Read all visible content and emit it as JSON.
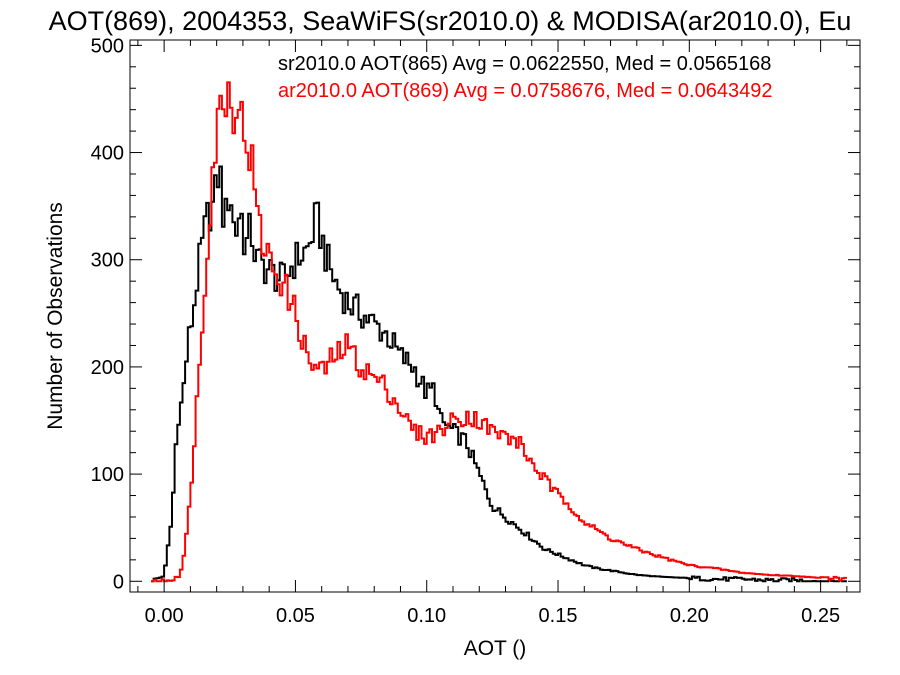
{
  "chart_data": {
    "type": "line",
    "title": "AOT(869), 2004353, SeaWiFS(sr2010.0) & MODISA(ar2010.0), Eu",
    "xlabel": "AOT ()",
    "ylabel": "Number of Observations",
    "xlim": [
      -0.013,
      0.265
    ],
    "ylim": [
      -10,
      505
    ],
    "xticks": [
      0.0,
      0.05,
      0.1,
      0.15,
      0.2,
      0.25
    ],
    "xtick_labels": [
      "0.00",
      "0.05",
      "0.10",
      "0.15",
      "0.20",
      "0.25"
    ],
    "yticks": [
      0,
      100,
      200,
      300,
      400,
      500
    ],
    "ytick_labels": [
      "0",
      "100",
      "200",
      "300",
      "400",
      "500"
    ],
    "grid": false,
    "legend_position": "top-right",
    "series": [
      {
        "name": "sr2010.0 AOT(865) Avg = 0.0622550, Med = 0.0565168",
        "color": "#000000",
        "style": "step",
        "x": [
          -0.005,
          0.0,
          0.003,
          0.005,
          0.007,
          0.009,
          0.011,
          0.013,
          0.015,
          0.017,
          0.019,
          0.021,
          0.023,
          0.025,
          0.027,
          0.029,
          0.031,
          0.033,
          0.035,
          0.04,
          0.045,
          0.05,
          0.055,
          0.058,
          0.06,
          0.062,
          0.065,
          0.07,
          0.075,
          0.08,
          0.085,
          0.09,
          0.095,
          0.1,
          0.103,
          0.105,
          0.11,
          0.115,
          0.12,
          0.125,
          0.13,
          0.135,
          0.14,
          0.145,
          0.15,
          0.155,
          0.16,
          0.165,
          0.17,
          0.175,
          0.18,
          0.19,
          0.2,
          0.21,
          0.22,
          0.23,
          0.24,
          0.25,
          0.26
        ],
        "y": [
          0,
          5,
          60,
          150,
          170,
          220,
          250,
          290,
          320,
          345,
          350,
          390,
          330,
          370,
          320,
          350,
          310,
          330,
          300,
          290,
          280,
          300,
          310,
          340,
          320,
          300,
          280,
          260,
          250,
          240,
          230,
          210,
          200,
          175,
          180,
          150,
          140,
          130,
          100,
          70,
          60,
          50,
          40,
          30,
          25,
          20,
          15,
          12,
          10,
          8,
          6,
          4,
          3,
          2,
          2,
          1,
          1,
          0,
          0
        ]
      },
      {
        "name": "ar2010.0 AOT(869) Avg = 0.0758676, Med = 0.0643492",
        "color": "#ff0000",
        "style": "step",
        "x": [
          -0.005,
          0.003,
          0.006,
          0.008,
          0.01,
          0.012,
          0.014,
          0.016,
          0.018,
          0.02,
          0.022,
          0.024,
          0.026,
          0.028,
          0.03,
          0.032,
          0.034,
          0.036,
          0.04,
          0.045,
          0.05,
          0.055,
          0.06,
          0.065,
          0.07,
          0.075,
          0.08,
          0.085,
          0.09,
          0.095,
          0.1,
          0.105,
          0.11,
          0.115,
          0.12,
          0.125,
          0.13,
          0.135,
          0.14,
          0.145,
          0.15,
          0.155,
          0.16,
          0.17,
          0.18,
          0.19,
          0.2,
          0.21,
          0.22,
          0.23,
          0.24,
          0.25,
          0.26
        ],
        "y": [
          0,
          0,
          5,
          30,
          80,
          150,
          220,
          300,
          370,
          420,
          450,
          460,
          440,
          455,
          420,
          410,
          380,
          330,
          300,
          280,
          250,
          205,
          195,
          210,
          220,
          200,
          190,
          180,
          160,
          140,
          135,
          140,
          150,
          155,
          150,
          140,
          135,
          130,
          110,
          95,
          80,
          70,
          55,
          40,
          30,
          22,
          15,
          12,
          8,
          6,
          5,
          3,
          2
        ]
      }
    ]
  }
}
